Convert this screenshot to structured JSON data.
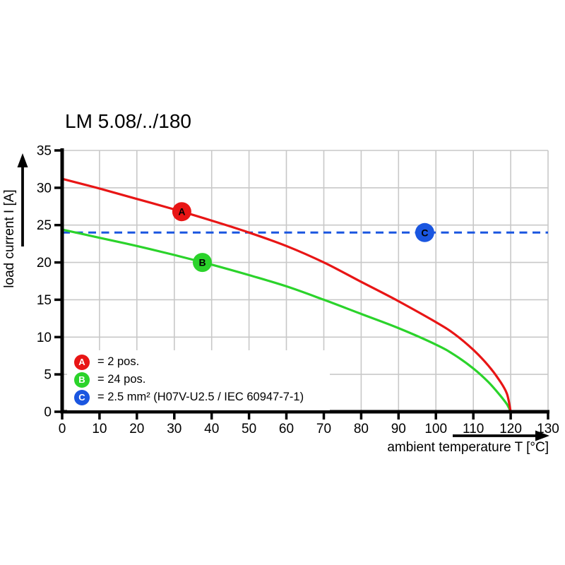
{
  "title": "LM 5.08/../180",
  "axes": {
    "x": {
      "label": "ambient temperature T [°C]"
    },
    "y": {
      "label": "load current I [A]"
    }
  },
  "legend": {
    "items": [
      {
        "letter": "A",
        "text": "= 2 pos.",
        "color": "#e81515"
      },
      {
        "letter": "B",
        "text": "= 24 pos.",
        "color": "#2bd32b"
      },
      {
        "letter": "C",
        "text": "= 2.5 mm² (H07V-U2.5 / IEC 60947-7-1)",
        "color": "#1a56e0"
      }
    ]
  },
  "chart_data": {
    "type": "line",
    "title": "LM 5.08/../180",
    "xlabel": "ambient temperature T [°C]",
    "ylabel": "load current I [A]",
    "xlim": [
      0,
      130
    ],
    "ylim": [
      0,
      35
    ],
    "xticks": [
      0,
      10,
      20,
      30,
      40,
      50,
      60,
      70,
      80,
      90,
      100,
      110,
      120,
      130
    ],
    "yticks": [
      0,
      5,
      10,
      15,
      20,
      25,
      30,
      35
    ],
    "grid": true,
    "grid_color": "#c8c8c8",
    "legend_position": "bottom-left",
    "series": [
      {
        "name": "A",
        "label": "= 2 pos.",
        "color": "#e81515",
        "style": "solid",
        "points": [
          [
            0,
            31.2
          ],
          [
            10,
            29.9
          ],
          [
            20,
            28.5
          ],
          [
            30,
            27.1
          ],
          [
            40,
            25.6
          ],
          [
            50,
            24.0
          ],
          [
            60,
            22.2
          ],
          [
            70,
            20.0
          ],
          [
            80,
            17.4
          ],
          [
            90,
            14.8
          ],
          [
            100,
            12.0
          ],
          [
            105,
            10.4
          ],
          [
            110,
            8.3
          ],
          [
            114,
            6.2
          ],
          [
            117,
            4.2
          ],
          [
            119,
            2.4
          ],
          [
            120,
            0
          ]
        ]
      },
      {
        "name": "B",
        "label": "= 24 pos.",
        "color": "#2bd32b",
        "style": "solid",
        "points": [
          [
            0,
            24.4
          ],
          [
            10,
            23.3
          ],
          [
            20,
            22.2
          ],
          [
            30,
            21.0
          ],
          [
            40,
            19.7
          ],
          [
            50,
            18.3
          ],
          [
            60,
            16.8
          ],
          [
            70,
            15.0
          ],
          [
            80,
            13.1
          ],
          [
            90,
            11.2
          ],
          [
            100,
            9.0
          ],
          [
            105,
            7.6
          ],
          [
            110,
            5.8
          ],
          [
            114,
            4.0
          ],
          [
            117,
            2.3
          ],
          [
            119,
            1.0
          ],
          [
            120,
            0
          ]
        ]
      },
      {
        "name": "C",
        "label": "= 2.5 mm² (H07V-U2.5 / IEC 60947-7-1)",
        "color": "#1a56e0",
        "style": "dashed",
        "points": [
          [
            0,
            24
          ],
          [
            130,
            24
          ]
        ]
      }
    ],
    "markers": [
      {
        "letter": "A",
        "series": "A",
        "x": 32,
        "y": 26.8
      },
      {
        "letter": "B",
        "series": "B",
        "x": 37.5,
        "y": 20.0
      },
      {
        "letter": "C",
        "series": "C",
        "x": 97,
        "y": 24.0
      }
    ]
  }
}
